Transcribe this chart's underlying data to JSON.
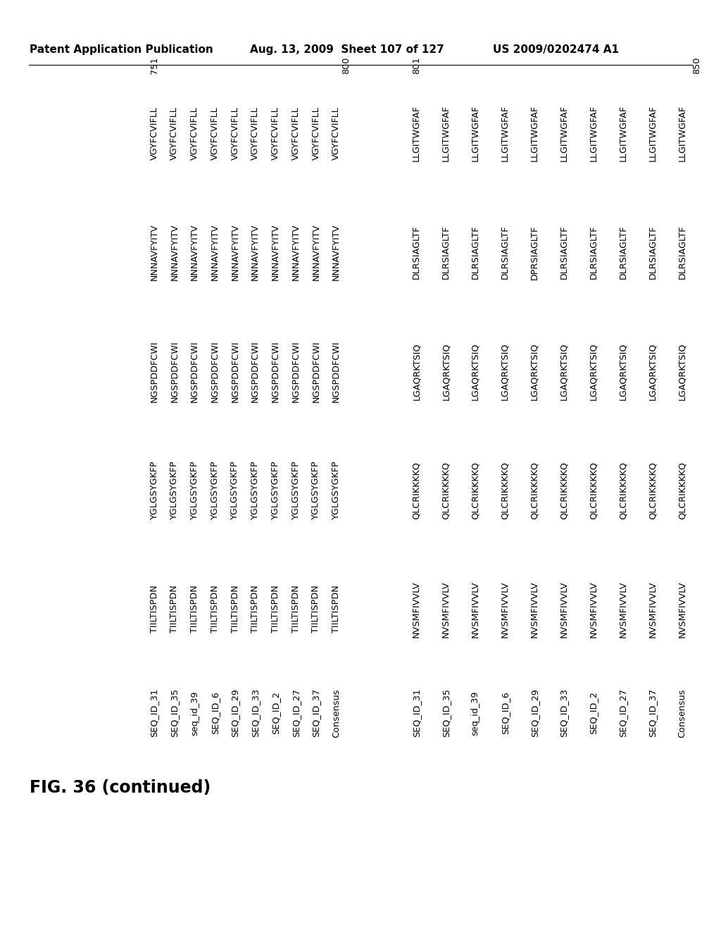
{
  "header_left": "Patent Application Publication",
  "header_mid": "Aug. 13, 2009  Sheet 107 of 127",
  "header_right": "US 2009/0202474 A1",
  "fig_label": "FIG. 36 (continued)",
  "block1": {
    "pos_start": "751",
    "pos_end": "800",
    "rows": [
      {
        "label": "SEQ_ID_31",
        "seqs": [
          "TIILTISPDN",
          "YGLGSYGKFP",
          "NGSPDDFCWI",
          "NNNAVFYITV",
          "VGYFCVIFLL"
        ]
      },
      {
        "label": "SEQ_ID_35",
        "seqs": [
          "TIILTISPDN",
          "YGLGSYGKFP",
          "NGSPDDFCWI",
          "NNNAVFYITV",
          "VGYFCVIFLL"
        ]
      },
      {
        "label": "seq_id_39",
        "seqs": [
          "TIILTISPDN",
          "YGLGSYGKFP",
          "NGSPDDFCWI",
          "NNNAVFYITV",
          "VGYFCVIFLL"
        ]
      },
      {
        "label": "SEQ_ID_6",
        "seqs": [
          "TIILTISPDN",
          "YGLGSYGKFP",
          "NGSPDDFCWI",
          "NNNAVFYITV",
          "VGYFCVIFLL"
        ]
      },
      {
        "label": "SEQ_ID_29",
        "seqs": [
          "TIILTISPDN",
          "YGLGSYGKFP",
          "NGSPDDFCWI",
          "NNNAVFYITV",
          "VGYFCVIFLL"
        ]
      },
      {
        "label": "SEQ_ID_33",
        "seqs": [
          "TIILTISPDN",
          "YGLGSYGKFP",
          "NGSPDDFCWI",
          "NNNAVFYITV",
          "VGYFCVIFLL"
        ]
      },
      {
        "label": "SEQ_ID_2",
        "seqs": [
          "TIILTISPDN",
          "YGLGSYGKFP",
          "NGSPDDFCWI",
          "NNNAVFYITV",
          "VGYFCVIFLL"
        ]
      },
      {
        "label": "SEQ_ID_27",
        "seqs": [
          "TIILTISPDN",
          "YGLGSYGKFP",
          "NGSPDDFCWI",
          "NNNAVFYITV",
          "VGYFCVIFLL"
        ]
      },
      {
        "label": "SEQ_ID_37",
        "seqs": [
          "TIILTISPDN",
          "YGLGSYGKFP",
          "NGSPDDFCWI",
          "NNNAVFYITV",
          "VGYFCVIFLL"
        ]
      },
      {
        "label": "Consensus",
        "seqs": [
          "TIILTISPDN",
          "YGLGSYGKFP",
          "NGSPDDFCWI",
          "NNNAVFYITV",
          "VGYFCVIFLL"
        ]
      }
    ]
  },
  "block2": {
    "pos_start": "801",
    "pos_end": "850",
    "rows": [
      {
        "label": "SEQ_ID_31",
        "seqs": [
          "NVSMFIVVLV",
          "QLCRIKKKKQ",
          "LGAQRKTSIQ",
          "DLRSIAGLTF",
          "LLGITWGFAF"
        ]
      },
      {
        "label": "SEQ_ID_35",
        "seqs": [
          "NVSMFIVVLV",
          "QLCRIKKKKQ",
          "LGAQRKTSIQ",
          "DLRSIAGLTF",
          "LLGITWGFAF"
        ]
      },
      {
        "label": "seq_id_39",
        "seqs": [
          "NVSMFIVVLV",
          "QLCRIKKKKQ",
          "LGAQRKTSIQ",
          "DLRSIAGLTF",
          "LLGITWGFAF"
        ]
      },
      {
        "label": "SEQ_ID_6",
        "seqs": [
          "NVSMFIVVLV",
          "QLCRIKKKKQ",
          "LGAQRKTSIQ",
          "DLRSIAGLTF",
          "LLGITWGFAF"
        ]
      },
      {
        "label": "SEQ_ID_29",
        "seqs": [
          "NVSMFIVVLV",
          "QLCRIKKKKQ",
          "LGAQRKTSIQ",
          "DPRSIAGLTF",
          "LLGITWGFAF"
        ]
      },
      {
        "label": "SEQ_ID_33",
        "seqs": [
          "NVSMFIVVLV",
          "QLCRIKKKKQ",
          "LGAQRKTSIQ",
          "DLRSIAGLTF",
          "LLGITWGFAF"
        ]
      },
      {
        "label": "SEQ_ID_2",
        "seqs": [
          "NVSMFIVVLV",
          "QLCRIKKKKQ",
          "LGAQRKTSIQ",
          "DLRSIAGLTF",
          "LLGITWGFAF"
        ]
      },
      {
        "label": "SEQ_ID_27",
        "seqs": [
          "NVSMFIVVLV",
          "QLCRIKKKKQ",
          "LGAQRKTSIQ",
          "DLRSIAGLTF",
          "LLGITWGFAF"
        ]
      },
      {
        "label": "SEQ_ID_37",
        "seqs": [
          "NVSMFIVVLV",
          "QLCRIKKKKQ",
          "LGAQRKTSIQ",
          "DLRSIAGLTF",
          "LLGITWGFAF"
        ]
      },
      {
        "label": "Consensus",
        "seqs": [
          "NVSMFIVVLV",
          "QLCRIKKKKQ",
          "LGAQRKTSIQ",
          "DLRSIAGLTF",
          "LLGITWGFAF"
        ]
      }
    ]
  },
  "background_color": "#ffffff",
  "text_color": "#000000"
}
